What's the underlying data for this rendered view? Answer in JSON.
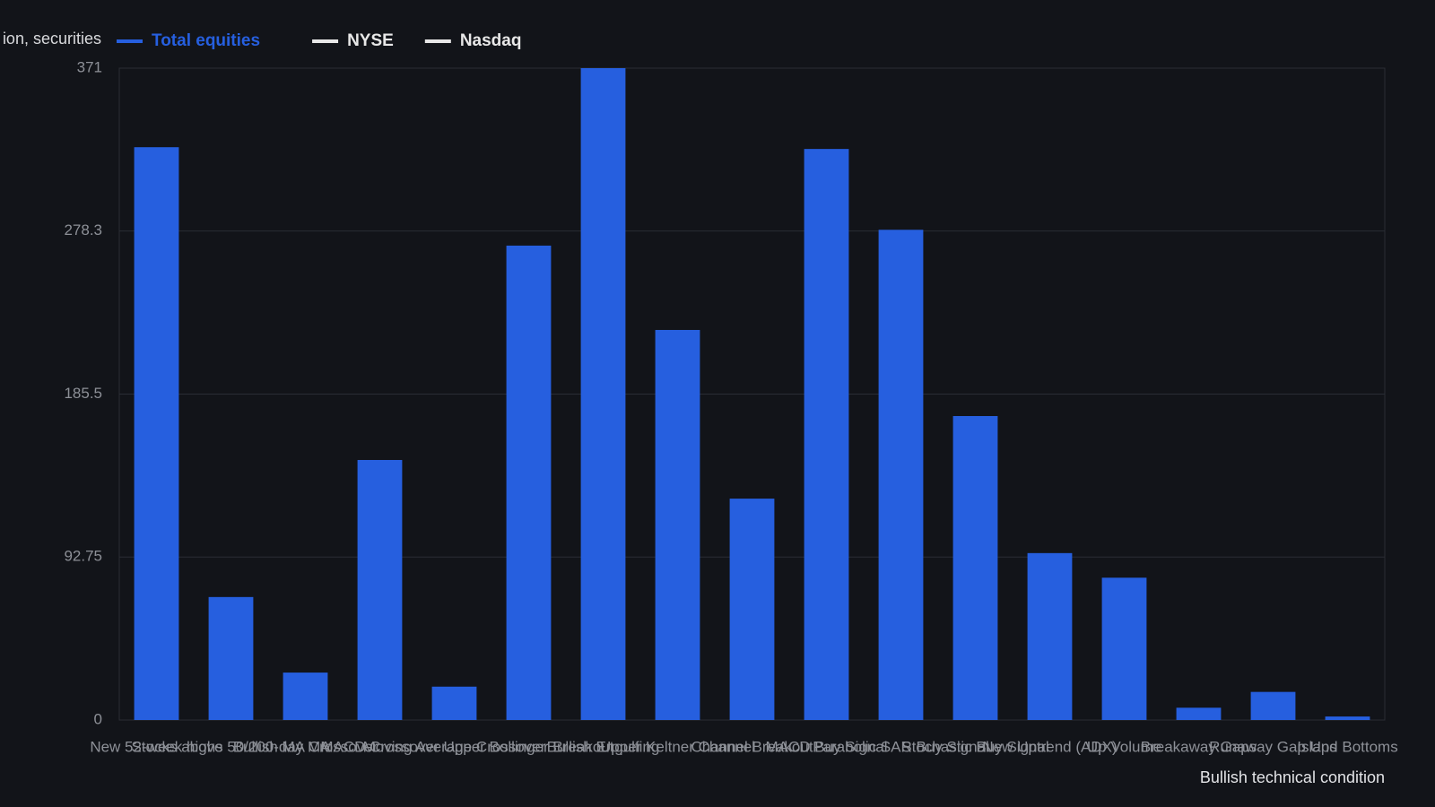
{
  "chart_data": {
    "type": "bar",
    "ylabel": "ion, securities",
    "xlabel": "Bullish technical condition",
    "categories": [
      "New 52-week highs",
      "Stocks above 50/200-day MA",
      "Bullish MA Crossover",
      "MACD Crossover",
      "Moving Average Crossover",
      "Upper Bollinger Breakout",
      "Bullish Engulfing",
      "Upper Keltner Channel",
      "Channel Breakout",
      "MACD Buy Signal",
      "Parabolic SAR Buy Signal",
      "Stochastic Buy Signal",
      "New Uptrend (ADX)",
      "Up Volume",
      "Breakaway Gaps",
      "Runaway Gap Ups",
      "Island Bottoms"
    ],
    "series": [
      {
        "name": "Total equities",
        "color": "#265fdf",
        "values": [
          326,
          70,
          27,
          148,
          19,
          270,
          371,
          222,
          126,
          325,
          279,
          173,
          95,
          81,
          7,
          16,
          2
        ]
      }
    ],
    "legend": [
      {
        "name": "Total equities",
        "color": "#265fdf"
      },
      {
        "name": "NYSE",
        "color": "#e8e8e8"
      },
      {
        "name": "Nasdaq",
        "color": "#e8e8e8"
      }
    ],
    "ylim": [
      0,
      371
    ],
    "yticks": [
      0,
      92.75,
      185.5,
      278.3,
      371
    ],
    "grid": true
  }
}
